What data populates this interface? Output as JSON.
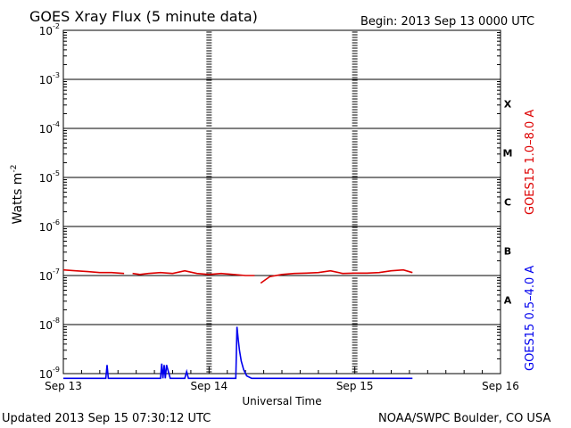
{
  "header": {
    "title": "GOES Xray Flux (5 minute data)",
    "begin": "Begin:  2013 Sep 13 0000 UTC"
  },
  "footer": {
    "updated": "Updated 2013 Sep 15 07:30:12 UTC",
    "credit": "NOAA/SWPC Boulder, CO USA"
  },
  "colors": {
    "long_channel": "#dd0000",
    "short_channel": "#0000ee",
    "axes": "#000000"
  },
  "chart_data": {
    "type": "line",
    "title": "GOES Xray Flux (5 minute data)",
    "xlabel": "Universal Time",
    "ylabel": "Watts m",
    "ylabel_superscript": "-2",
    "yscale": "log",
    "ylim_exponent": [
      -9,
      -2
    ],
    "y_ticks": [
      {
        "mantissa": "10",
        "exp": "-2"
      },
      {
        "mantissa": "10",
        "exp": "-3"
      },
      {
        "mantissa": "10",
        "exp": "-4"
      },
      {
        "mantissa": "10",
        "exp": "-5"
      },
      {
        "mantissa": "10",
        "exp": "-6"
      },
      {
        "mantissa": "10",
        "exp": "-7"
      },
      {
        "mantissa": "10",
        "exp": "-8"
      },
      {
        "mantissa": "10",
        "exp": "-9"
      }
    ],
    "x_range_days": [
      "2013-09-13",
      "2013-09-16"
    ],
    "x_ticks": [
      "Sep 13",
      "Sep 14",
      "Sep 15",
      "Sep 16"
    ],
    "flare_classes": [
      "X",
      "M",
      "C",
      "B",
      "A"
    ],
    "grid": "horizontal at each decade",
    "series": [
      {
        "name": "GOES15 1.0–8.0 A",
        "x_hours": [
          0,
          2,
          4,
          6,
          8,
          10,
          11.4,
          12.6,
          14,
          16,
          18,
          20,
          22,
          24,
          26,
          28,
          30,
          31.5,
          32.5,
          34,
          36,
          38,
          40,
          42,
          44,
          46,
          48,
          50,
          52,
          54,
          56,
          57.5
        ],
        "flux": [
          1.3e-07,
          1.25e-07,
          1.2e-07,
          1.15e-07,
          1.15e-07,
          1.1e-07,
          1.1e-07,
          1.05e-07,
          1.1e-07,
          1.15e-07,
          1.1e-07,
          1.25e-07,
          1.1e-07,
          1.05e-07,
          1.1e-07,
          1.05e-07,
          1e-07,
          1e-07,
          7e-08,
          9.5e-08,
          1.05e-07,
          1.1e-07,
          1.12e-07,
          1.15e-07,
          1.25e-07,
          1.1e-07,
          1.12e-07,
          1.12e-07,
          1.15e-07,
          1.25e-07,
          1.3e-07,
          1.15e-07
        ]
      },
      {
        "name": "GOES15 0.5–4.0 A",
        "x_hours": [
          0,
          7,
          7.2,
          7.4,
          7.6,
          8,
          10,
          12,
          16,
          16.2,
          16.4,
          16.6,
          16.8,
          17,
          17.2,
          17.6,
          18,
          20,
          20.3,
          20.6,
          22,
          26,
          28.4,
          28.6,
          28.8,
          29.0,
          29.3,
          29.7,
          30.2,
          31,
          32,
          40,
          48,
          57.5
        ],
        "flux": [
          8e-10,
          8e-10,
          1.5e-09,
          8e-10,
          8e-10,
          8e-10,
          8e-10,
          8e-10,
          8e-10,
          1.6e-09,
          8e-10,
          1.5e-09,
          8e-10,
          1.5e-09,
          1.2e-09,
          8e-10,
          8e-10,
          8e-10,
          1.1e-09,
          8e-10,
          8e-10,
          8e-10,
          8e-10,
          9e-09,
          5e-09,
          3e-09,
          1.8e-09,
          1.2e-09,
          9e-10,
          8e-10,
          8e-10,
          8e-10,
          8e-10,
          8e-10
        ]
      }
    ]
  }
}
